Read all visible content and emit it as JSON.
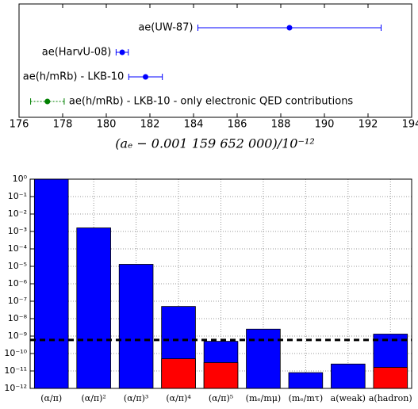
{
  "chart_data": [
    {
      "type": "errorbar",
      "labels": [
        "ae(UW-87)",
        "ae(HarvU-08)",
        "ae(h/mRb) - LKB-10",
        "ae(h/mRb) - LKB-10 - only electronic QED contributions"
      ],
      "values": [
        188.4,
        180.73,
        181.8,
        177.3
      ],
      "errors": [
        4.2,
        0.28,
        0.77,
        0.77
      ],
      "colors": [
        "#0000ff",
        "#0000ff",
        "#0000ff",
        "#008000"
      ],
      "linestyles": [
        "solid",
        "solid",
        "solid",
        "dotted"
      ],
      "xlim": [
        176,
        194
      ],
      "xticks": [
        176,
        178,
        180,
        182,
        184,
        186,
        188,
        190,
        192,
        194
      ],
      "xlabel": "(aₑ − 0.001 159 652 000)/10⁻¹²"
    },
    {
      "type": "bar",
      "log_scale": true,
      "grid": true,
      "stacked": false,
      "categories": [
        "(α/π)",
        "(α/π)²",
        "(α/π)³",
        "(α/π)⁴",
        "(α/π)⁵",
        "(mₑ/mμ)",
        "(mₑ/mτ)",
        "a(weak)",
        "a(hadron)"
      ],
      "series": [
        {
          "color": "#0000ff",
          "values": [
            1,
            0.0016,
            1.3e-05,
            5e-08,
            5e-10,
            2.5e-09,
            8e-12,
            2.5e-11,
            1.3e-09
          ]
        },
        {
          "color": "#ff0000",
          "values": [
            null,
            null,
            null,
            5e-11,
            3e-11,
            null,
            null,
            null,
            1.6e-11
          ]
        }
      ],
      "hline": 6e-10,
      "ylim": [
        1e-12,
        1
      ],
      "yticks": [
        {
          "value": 1,
          "label": "10⁰"
        },
        {
          "value": 0.1,
          "label": "10⁻¹"
        },
        {
          "value": 0.01,
          "label": "10⁻²"
        },
        {
          "value": 0.001,
          "label": "10⁻³"
        },
        {
          "value": 0.0001,
          "label": "10⁻⁴"
        },
        {
          "value": 1e-05,
          "label": "10⁻⁵"
        },
        {
          "value": 1e-06,
          "label": "10⁻⁶"
        },
        {
          "value": 1e-07,
          "label": "10⁻⁷"
        },
        {
          "value": 1e-08,
          "label": "10⁻⁸"
        },
        {
          "value": 1e-09,
          "label": "10⁻⁹"
        },
        {
          "value": 1e-10,
          "label": "10⁻¹⁰"
        },
        {
          "value": 1e-11,
          "label": "10⁻¹¹"
        },
        {
          "value": 1e-12,
          "label": "10⁻¹²"
        }
      ]
    }
  ]
}
